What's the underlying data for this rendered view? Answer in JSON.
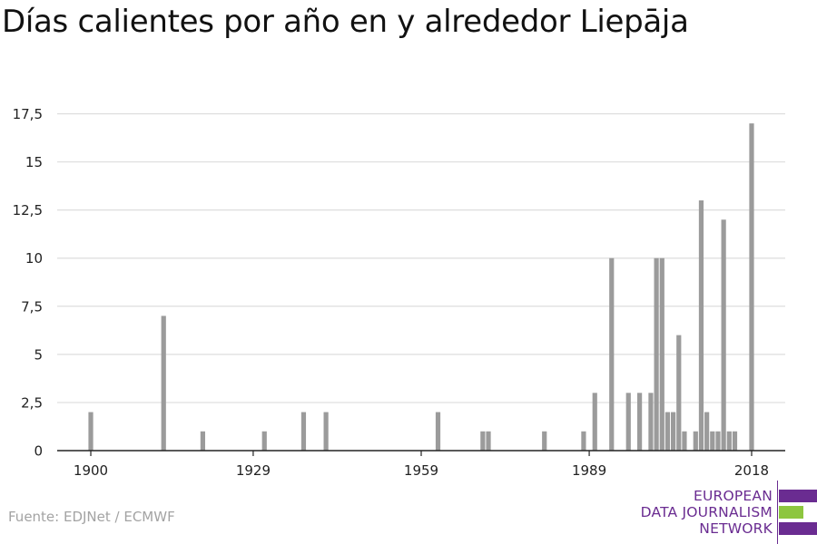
{
  "title": "Días calientes por año en y alrededor Liepāja",
  "source": "Fuente: EDJNet / ECMWF",
  "logo": {
    "line1": "EUROPEAN",
    "line2": "DATA JOURNALISM",
    "line3": "NETWORK",
    "colors": {
      "text": "#6a2c91",
      "bar_purple": "#6a2c91",
      "bar_green": "#8dc63f"
    }
  },
  "chart_data": {
    "type": "bar",
    "title": "Días calientes por año en y alrededor Liepāja",
    "xlabel": "",
    "ylabel": "",
    "ylim": [
      0,
      17.5
    ],
    "xlim": [
      1894,
      2024
    ],
    "y_ticks": [
      {
        "value": 0,
        "label": "0"
      },
      {
        "value": 2.5,
        "label": "2,5"
      },
      {
        "value": 5,
        "label": "5"
      },
      {
        "value": 7.5,
        "label": "7,5"
      },
      {
        "value": 10,
        "label": "10"
      },
      {
        "value": 12.5,
        "label": "12,5"
      },
      {
        "value": 15,
        "label": "15"
      },
      {
        "value": 17.5,
        "label": "17,5"
      }
    ],
    "x_ticks": [
      {
        "value": 1900,
        "label": "1900"
      },
      {
        "value": 1929,
        "label": "1929"
      },
      {
        "value": 1959,
        "label": "1959"
      },
      {
        "value": 1989,
        "label": "1989"
      },
      {
        "value": 2018,
        "label": "2018"
      }
    ],
    "grid": true,
    "bar_color": "#9b9b9b",
    "grid_color": "#dddddd",
    "axis_color": "#222222",
    "data": [
      {
        "year": 1900,
        "value": 2
      },
      {
        "year": 1913,
        "value": 7
      },
      {
        "year": 1920,
        "value": 1
      },
      {
        "year": 1931,
        "value": 1
      },
      {
        "year": 1938,
        "value": 2
      },
      {
        "year": 1942,
        "value": 2
      },
      {
        "year": 1962,
        "value": 2
      },
      {
        "year": 1970,
        "value": 1
      },
      {
        "year": 1971,
        "value": 1
      },
      {
        "year": 1981,
        "value": 1
      },
      {
        "year": 1988,
        "value": 1
      },
      {
        "year": 1990,
        "value": 3
      },
      {
        "year": 1993,
        "value": 10
      },
      {
        "year": 1996,
        "value": 3
      },
      {
        "year": 1998,
        "value": 3
      },
      {
        "year": 2000,
        "value": 3
      },
      {
        "year": 2001,
        "value": 10
      },
      {
        "year": 2002,
        "value": 10
      },
      {
        "year": 2003,
        "value": 2
      },
      {
        "year": 2004,
        "value": 2
      },
      {
        "year": 2005,
        "value": 6
      },
      {
        "year": 2006,
        "value": 1
      },
      {
        "year": 2008,
        "value": 1
      },
      {
        "year": 2009,
        "value": 13
      },
      {
        "year": 2010,
        "value": 2
      },
      {
        "year": 2011,
        "value": 1
      },
      {
        "year": 2012,
        "value": 1
      },
      {
        "year": 2013,
        "value": 12
      },
      {
        "year": 2014,
        "value": 1
      },
      {
        "year": 2015,
        "value": 1
      },
      {
        "year": 2018,
        "value": 17
      }
    ]
  }
}
